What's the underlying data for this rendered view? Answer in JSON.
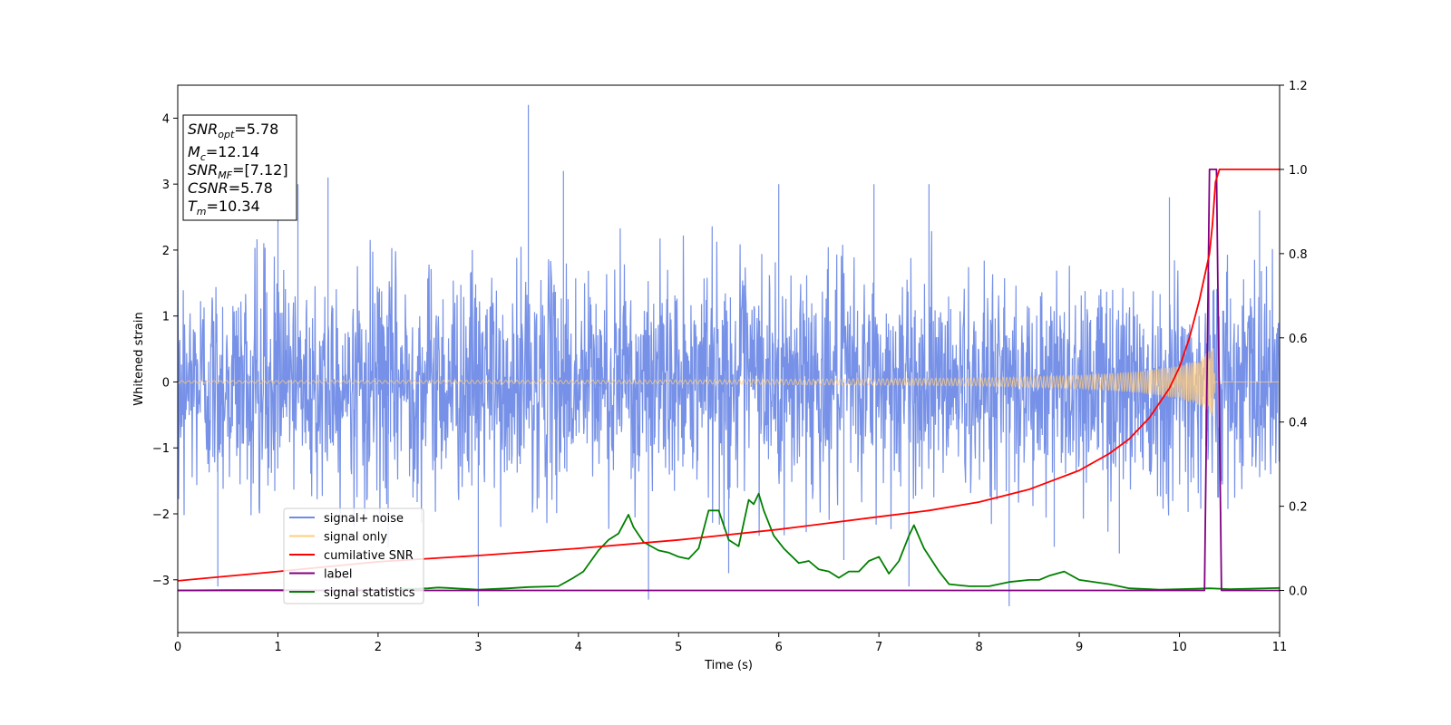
{
  "chart_data": {
    "type": "line",
    "xlabel": "Time (s)",
    "ylabel": "Whitened strain",
    "xlim": [
      0,
      11
    ],
    "ylim": [
      -3.8,
      4.5
    ],
    "y2lim": [
      -0.1,
      1.2
    ],
    "xticks": [
      "0",
      "1",
      "2",
      "3",
      "4",
      "5",
      "6",
      "7",
      "8",
      "9",
      "10",
      "11"
    ],
    "yticks": [
      "−3",
      "−2",
      "−1",
      "0",
      "1",
      "2",
      "3",
      "4"
    ],
    "y2ticks": [
      "0.0",
      "0.2",
      "0.4",
      "0.6",
      "0.8",
      "1.0",
      "1.2"
    ],
    "legend": {
      "placement": "lower-left",
      "entries": [
        {
          "label": "signal+ noise",
          "color": "#6f8be6"
        },
        {
          "label": "signal only",
          "color": "#ffcc80"
        },
        {
          "label": "cumilative SNR",
          "color": "#ff0000"
        },
        {
          "label": "label",
          "color": "#800080"
        },
        {
          "label": "signal statistics",
          "color": "#008000"
        }
      ]
    },
    "info_box": {
      "snr_opt": "=5.78",
      "mc": "=12.14",
      "snr_mf": "=[7.12]",
      "csnr": "=5.78",
      "tm": "=10.34"
    },
    "series": [
      {
        "name": "signal+ noise",
        "axis": "left",
        "color": "#6f8be6",
        "noise_std": 0.85,
        "envelope_upper": [
          [
            0,
            2.1
          ],
          [
            1,
            2.2
          ],
          [
            2,
            2.3
          ],
          [
            3,
            2.3
          ],
          [
            4,
            2.4
          ],
          [
            5,
            2.4
          ],
          [
            6,
            2.4
          ],
          [
            7,
            2.3
          ],
          [
            8,
            2.3
          ],
          [
            9,
            2.3
          ],
          [
            10,
            2.2
          ],
          [
            11,
            2.2
          ]
        ],
        "envelope_lower": [
          [
            0,
            -2.1
          ],
          [
            1,
            -2.2
          ],
          [
            2,
            -2.2
          ],
          [
            3,
            -2.3
          ],
          [
            4,
            -2.3
          ],
          [
            5,
            -2.4
          ],
          [
            6,
            -2.4
          ],
          [
            7,
            -2.3
          ],
          [
            8,
            -2.3
          ],
          [
            9,
            -2.3
          ],
          [
            10,
            -2.2
          ],
          [
            11,
            -2.2
          ]
        ],
        "spikes": [
          [
            0.4,
            -3.1
          ],
          [
            1.0,
            3.1
          ],
          [
            1.2,
            3.0
          ],
          [
            1.5,
            3.1
          ],
          [
            2.1,
            -2.5
          ],
          [
            3.0,
            -3.4
          ],
          [
            3.5,
            4.2
          ],
          [
            3.85,
            3.2
          ],
          [
            4.7,
            -3.3
          ],
          [
            5.5,
            -2.9
          ],
          [
            6.0,
            3.0
          ],
          [
            6.65,
            -2.7
          ],
          [
            6.95,
            3.0
          ],
          [
            7.3,
            -3.1
          ],
          [
            7.5,
            3.0
          ],
          [
            8.3,
            -3.4
          ],
          [
            8.75,
            -2.5
          ],
          [
            9.4,
            -2.6
          ],
          [
            9.9,
            2.8
          ],
          [
            10.8,
            2.6
          ]
        ]
      },
      {
        "name": "signal only",
        "axis": "left",
        "color": "#ffcc80",
        "amplitude": [
          [
            0,
            0.02
          ],
          [
            5,
            0.03
          ],
          [
            8,
            0.06
          ],
          [
            9,
            0.1
          ],
          [
            9.6,
            0.16
          ],
          [
            10,
            0.25
          ],
          [
            10.2,
            0.35
          ],
          [
            10.3,
            0.5
          ],
          [
            10.34,
            0.55
          ],
          [
            10.36,
            0.0
          ],
          [
            11,
            0.0
          ]
        ]
      },
      {
        "name": "cumilative SNR",
        "axis": "right",
        "color": "#ff0000",
        "x": [
          0,
          1,
          2,
          3,
          4,
          5,
          6,
          7,
          7.5,
          8,
          8.5,
          9,
          9.3,
          9.5,
          9.7,
          9.9,
          10.0,
          10.1,
          10.2,
          10.3,
          10.33,
          10.36,
          10.4,
          11
        ],
        "y": [
          0.023,
          0.045,
          0.068,
          0.083,
          0.1,
          0.12,
          0.145,
          0.175,
          0.19,
          0.21,
          0.24,
          0.285,
          0.325,
          0.36,
          0.41,
          0.48,
          0.53,
          0.6,
          0.69,
          0.8,
          0.87,
          0.97,
          1.0,
          1.0
        ]
      },
      {
        "name": "label",
        "axis": "right",
        "color": "#800080",
        "x": [
          0,
          10.25,
          10.3,
          10.37,
          10.42,
          11
        ],
        "y": [
          0,
          0,
          1.0,
          1.0,
          0,
          0
        ]
      },
      {
        "name": "signal statistics",
        "axis": "right",
        "color": "#008000",
        "x": [
          0,
          0.5,
          1.0,
          1.5,
          2.0,
          2.5,
          2.6,
          2.7,
          3.0,
          3.3,
          3.5,
          3.8,
          3.95,
          4.05,
          4.2,
          4.3,
          4.4,
          4.5,
          4.55,
          4.65,
          4.8,
          4.9,
          5.0,
          5.1,
          5.2,
          5.3,
          5.4,
          5.5,
          5.6,
          5.7,
          5.75,
          5.8,
          5.85,
          5.95,
          6.05,
          6.2,
          6.3,
          6.4,
          6.5,
          6.6,
          6.7,
          6.8,
          6.9,
          7.0,
          7.1,
          7.2,
          7.3,
          7.35,
          7.45,
          7.6,
          7.7,
          7.9,
          8.1,
          8.3,
          8.5,
          8.6,
          8.7,
          8.85,
          9.0,
          9.3,
          9.5,
          9.8,
          10.0,
          10.3,
          10.5,
          11.0
        ],
        "y": [
          0.0,
          0.001,
          0.001,
          0.0,
          0.001,
          0.005,
          0.007,
          0.006,
          0.002,
          0.005,
          0.008,
          0.01,
          0.03,
          0.045,
          0.095,
          0.12,
          0.135,
          0.18,
          0.15,
          0.115,
          0.095,
          0.09,
          0.08,
          0.075,
          0.1,
          0.19,
          0.19,
          0.12,
          0.105,
          0.215,
          0.205,
          0.23,
          0.19,
          0.13,
          0.1,
          0.065,
          0.07,
          0.05,
          0.045,
          0.03,
          0.045,
          0.045,
          0.07,
          0.08,
          0.04,
          0.07,
          0.13,
          0.155,
          0.1,
          0.045,
          0.015,
          0.01,
          0.01,
          0.02,
          0.025,
          0.025,
          0.035,
          0.045,
          0.025,
          0.015,
          0.005,
          0.002,
          0.003,
          0.005,
          0.003,
          0.006
        ]
      }
    ]
  }
}
